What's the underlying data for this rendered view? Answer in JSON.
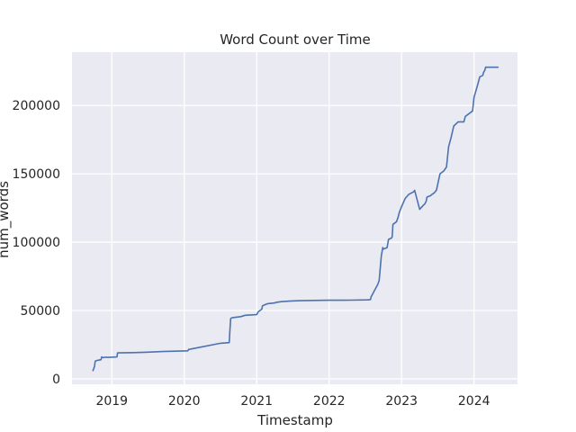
{
  "chart_data": {
    "type": "line",
    "title": "Word Count over Time",
    "xlabel": "Timestamp",
    "ylabel": "num_words",
    "x_ticks": [
      2019,
      2020,
      2021,
      2022,
      2023,
      2024
    ],
    "y_ticks": [
      0,
      50000,
      100000,
      150000,
      200000
    ],
    "xlim": [
      2018.45,
      2024.6
    ],
    "ylim": [
      -4000,
      239000
    ],
    "grid": true,
    "series": [
      {
        "x": [
          2018.74,
          2018.76,
          2018.77,
          2018.8,
          2018.85,
          2018.86,
          2018.88,
          2018.91,
          2018.95,
          2019.07,
          2019.08,
          2019.3,
          2019.5,
          2019.7,
          2020.05,
          2020.06,
          2020.5,
          2020.62,
          2020.63,
          2020.64,
          2020.65,
          2020.67,
          2020.78,
          2020.84,
          2021.0,
          2021.02,
          2021.07,
          2021.08,
          2021.15,
          2021.25,
          2021.27,
          2021.35,
          2021.48,
          2021.6,
          2022.0,
          2022.3,
          2022.53,
          2022.57,
          2022.58,
          2022.6,
          2022.65,
          2022.67,
          2022.69,
          2022.7,
          2022.72,
          2022.74,
          2022.75,
          2022.8,
          2022.82,
          2022.86,
          2022.87,
          2022.88,
          2022.93,
          2022.95,
          2022.97,
          2023.0,
          2023.05,
          2023.1,
          2023.17,
          2023.18,
          2023.25,
          2023.3,
          2023.32,
          2023.33,
          2023.34,
          2023.35,
          2023.4,
          2023.42,
          2023.45,
          2023.48,
          2023.53,
          2023.58,
          2023.62,
          2023.65,
          2023.68,
          2023.72,
          2023.78,
          2023.82,
          2023.84,
          2023.86,
          2023.88,
          2023.98,
          2024.0,
          2024.05,
          2024.08,
          2024.12,
          2024.13,
          2024.15,
          2024.16,
          2024.2,
          2024.25,
          2024.3,
          2024.33
        ],
        "values": [
          6000,
          9000,
          13000,
          13500,
          14000,
          16000,
          15500,
          15800,
          15700,
          16000,
          19000,
          19200,
          19500,
          20000,
          20500,
          21500,
          26000,
          26500,
          36000,
          44000,
          44500,
          44800,
          45500,
          46500,
          47000,
          49000,
          51000,
          53500,
          55000,
          55500,
          56000,
          56500,
          57000,
          57200,
          57500,
          57600,
          57800,
          58000,
          60000,
          62000,
          67000,
          69000,
          72000,
          78000,
          90000,
          96000,
          95000,
          96000,
          102000,
          103000,
          104000,
          113000,
          115000,
          118000,
          122000,
          126000,
          132000,
          135000,
          137000,
          138000,
          124000,
          127000,
          128000,
          129000,
          130000,
          133000,
          134000,
          135000,
          136000,
          138000,
          150000,
          152000,
          155000,
          170000,
          176000,
          185000,
          188000,
          188000,
          188000,
          188000,
          192000,
          196000,
          206000,
          215000,
          221000,
          222000,
          224000,
          226000,
          228000,
          228000,
          228000,
          228000,
          228000
        ]
      }
    ]
  }
}
